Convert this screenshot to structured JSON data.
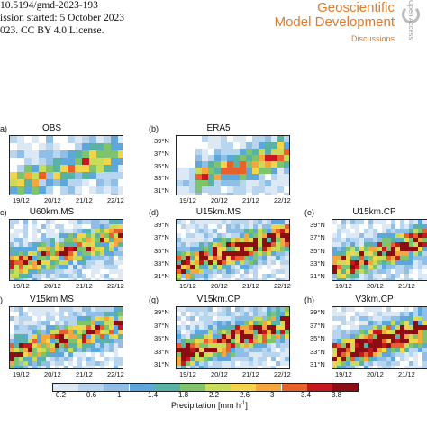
{
  "header": {
    "line1": "10.5194/gmd-2023-193",
    "line2": "ission started: 5 October 2023",
    "line3": "023. CC BY 4.0 License.",
    "brand_line1": "Geoscientific",
    "brand_line2": "Model Development",
    "brand_line3": "Discussions",
    "open_access": "Open Access"
  },
  "colors": {
    "brand": "#e07b2a",
    "scale": [
      "#ffffff",
      "#dce9f5",
      "#b8d5ef",
      "#8fbfe6",
      "#5ea7da",
      "#58b3a5",
      "#7fc46d",
      "#c8dc5a",
      "#f2d54a",
      "#f3a73c",
      "#e8612c",
      "#c8171f",
      "#8c0d12"
    ]
  },
  "panels": [
    {
      "label": "a)",
      "title": "OBS"
    },
    {
      "label": "(b)",
      "title": "ERA5"
    },
    {
      "label": "c)",
      "title": "U60km.MS"
    },
    {
      "label": "(d)",
      "title": "U15km.MS"
    },
    {
      "label": "(e)",
      "title": "U15km.CP"
    },
    {
      "label": ")",
      "title": "V15km.MS"
    },
    {
      "label": "(g)",
      "title": "V15km.CP"
    },
    {
      "label": "(h)",
      "title": "V3km.CP"
    }
  ],
  "latitudes": [
    "39°N",
    "37°N",
    "35°N",
    "33°N",
    "31°N"
  ],
  "dates": [
    "19/12",
    "20/12",
    "21/12",
    "22/12"
  ],
  "colorbar": {
    "ticks": [
      "0.2",
      "0.6",
      "1",
      "1.4",
      "1.8",
      "2.2",
      "2.6",
      "3",
      "3.4",
      "3.8"
    ],
    "label": "Precipitation [mm h",
    "label_sup": "-1",
    "label_end": "]"
  }
}
